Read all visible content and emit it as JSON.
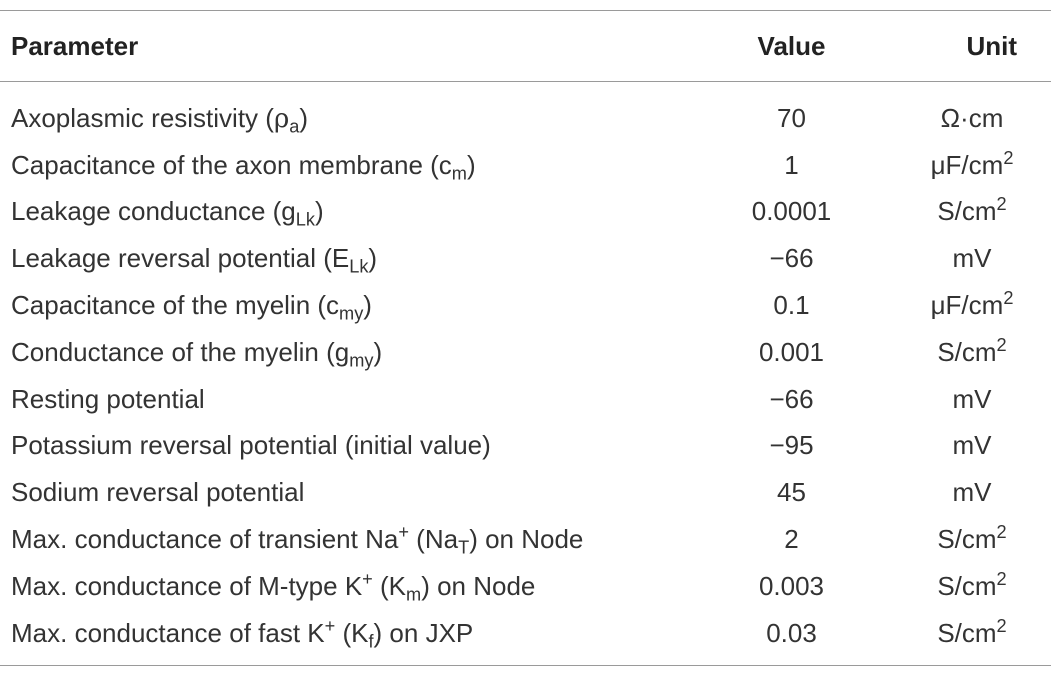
{
  "headers": {
    "parameter": "Parameter",
    "value": "Value",
    "unit": "Unit"
  },
  "rows": [
    {
      "p": "Axoplasmic resistivity (",
      "sym": "ρ",
      "sub": "a",
      "sup": "",
      "rest": ")",
      "value": "70",
      "unit": "Ω·cm",
      "unit_sup": ""
    },
    {
      "p": "Capacitance of the axon membrane (c",
      "sym": "",
      "sub": "m",
      "sup": "",
      "rest": ")",
      "value": "1",
      "unit": "μF/cm",
      "unit_sup": "2"
    },
    {
      "p": "Leakage conductance (g",
      "sym": "",
      "sub": "Lk",
      "sup": "",
      "rest": ")",
      "value": "0.0001",
      "unit": "S/cm",
      "unit_sup": "2"
    },
    {
      "p": "Leakage reversal potential (E",
      "sym": "",
      "sub": "Lk",
      "sup": "",
      "rest": ")",
      "value": "−66",
      "unit": "mV",
      "unit_sup": ""
    },
    {
      "p": "Capacitance of the myelin (c",
      "sym": "",
      "sub": "my",
      "sup": "",
      "rest": ")",
      "value": "0.1",
      "unit": "μF/cm",
      "unit_sup": "2"
    },
    {
      "p": "Conductance of the myelin (g",
      "sym": "",
      "sub": "my",
      "sup": "",
      "rest": ")",
      "value": "0.001",
      "unit": "S/cm",
      "unit_sup": "2"
    },
    {
      "p": "Resting potential",
      "sym": "",
      "sub": "",
      "sup": "",
      "rest": "",
      "value": "−66",
      "unit": "mV",
      "unit_sup": ""
    },
    {
      "p": "Potassium reversal potential (initial value)",
      "sym": "",
      "sub": "",
      "sup": "",
      "rest": "",
      "value": "−95",
      "unit": "mV",
      "unit_sup": ""
    },
    {
      "p": "Sodium reversal potential",
      "sym": "",
      "sub": "",
      "sup": "",
      "rest": "",
      "value": "45",
      "unit": "mV",
      "unit_sup": ""
    },
    {
      "p": "Max. conductance of transient Na",
      "sym": "",
      "sub": "",
      "sup": "+",
      "rest": "",
      "p2": " (Na",
      "sub2": "T",
      "rest2": ") on Node",
      "value": "2",
      "unit": "S/cm",
      "unit_sup": "2"
    },
    {
      "p": "Max. conductance of M-type K",
      "sym": "",
      "sub": "",
      "sup": "+",
      "rest": "",
      "p2": " (K",
      "sub2": "m",
      "rest2": ") on Node",
      "value": "0.003",
      "unit": "S/cm",
      "unit_sup": "2"
    },
    {
      "p": "Max. conductance of fast K",
      "sym": "",
      "sub": "",
      "sup": "+",
      "rest": "",
      "p2": " (K",
      "sub2": "f",
      "rest2": ") on JXP",
      "value": "0.03",
      "unit": "S/cm",
      "unit_sup": "2"
    }
  ]
}
